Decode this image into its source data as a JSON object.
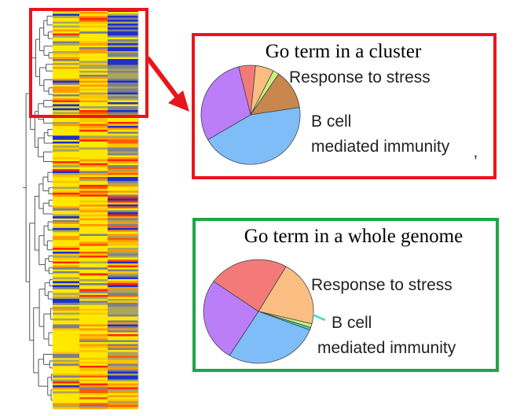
{
  "heatmap": {
    "palette": [
      "#ffd800",
      "#ffe800",
      "#fff200",
      "#ffc400",
      "#ff9a00",
      "#ff5a00",
      "#ff2a00",
      "#aaa65a",
      "#7f7f8c",
      "#1f2fc8"
    ],
    "highlight_color": "#e8151b"
  },
  "cluster_panel": {
    "title": "Go term in a cluster",
    "border_color": "#e8151b",
    "labels": {
      "stress": "Response to stress",
      "bcell_line1": "B cell",
      "bcell_line2": "mediated immunity",
      "tick": "’"
    },
    "slices": [
      {
        "value": 5.5,
        "color": "#f47a7a"
      },
      {
        "value": 6,
        "color": "#fbbe82"
      },
      {
        "value": 2,
        "color": "#c8f07a"
      },
      {
        "value": 13,
        "color": "#c7874f"
      },
      {
        "value": 44,
        "color": "#7fbdf8"
      },
      {
        "value": 29.5,
        "color": "#bb7df8"
      }
    ]
  },
  "genome_panel": {
    "title": "Go term in a whole genome",
    "border_color": "#1fa548",
    "labels": {
      "stress": "Response to stress",
      "bcell_line1": "B cell",
      "bcell_line2": "mediated immunity"
    },
    "slices": [
      {
        "value": 20.5,
        "color": "#fbbe82"
      },
      {
        "value": 1.2,
        "color": "#c8f07a"
      },
      {
        "value": 0.8,
        "color": "#3fd8c0"
      },
      {
        "value": 28,
        "color": "#7fbdf8"
      },
      {
        "value": 26,
        "color": "#bb7df8"
      },
      {
        "value": 23.5,
        "color": "#f47a7a"
      }
    ]
  }
}
